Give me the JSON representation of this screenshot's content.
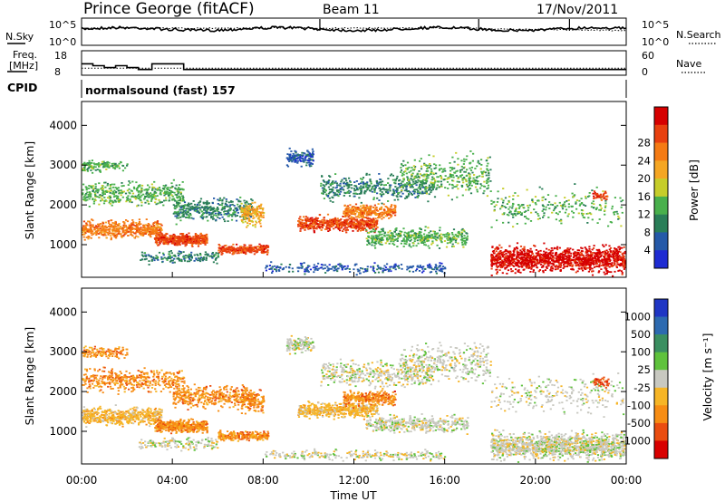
{
  "header": {
    "station": "Prince George (fitACF)",
    "beam": "Beam 11",
    "date": "17/Nov/2011"
  },
  "noise_panel": {
    "left_label": "N.Sky",
    "right_label": "N.Search",
    "left_ticks": [
      "10^5",
      "10^0"
    ],
    "right_ticks": [
      "10^5",
      "10^0"
    ]
  },
  "freq_panel": {
    "left_label_1": "Freq.",
    "left_label_2": "[MHz]",
    "right_label": "Nave",
    "left_ticks": [
      "18",
      "8"
    ],
    "right_ticks": [
      "60",
      "0"
    ],
    "freq_steps": [
      {
        "t": 0,
        "mhz": 14.0
      },
      {
        "t": 0.5,
        "mhz": 13.0
      },
      {
        "t": 1.0,
        "mhz": 12.0
      },
      {
        "t": 1.5,
        "mhz": 13.0
      },
      {
        "t": 2.0,
        "mhz": 12.0
      },
      {
        "t": 2.5,
        "mhz": 11.0
      },
      {
        "t": 3.1,
        "mhz": 14.0
      },
      {
        "t": 4.5,
        "mhz": 11.0
      },
      {
        "t": 24,
        "mhz": 11.0
      }
    ],
    "nave_level": 22
  },
  "cpid": {
    "label": "CPID",
    "text": "normalsound (fast) 157"
  },
  "chart_data": [
    {
      "type": "heatmap",
      "name": "power",
      "ylabel": "Slant Range [km]",
      "xlim": [
        0,
        24
      ],
      "ylim": [
        180,
        4600
      ],
      "yticks": [
        "1000",
        "2000",
        "3000",
        "4000"
      ],
      "colorbar": {
        "label": "Power [dB]",
        "ticks": [
          "4",
          "8",
          "12",
          "16",
          "20",
          "24",
          "28"
        ],
        "colors": [
          "#1e2bd2",
          "#2559a8",
          "#2a7e58",
          "#49b04c",
          "#c6cd2a",
          "#f5a623",
          "#f57b14",
          "#e8400f",
          "#d60000"
        ]
      }
    },
    {
      "type": "heatmap",
      "name": "velocity",
      "ylabel": "Slant Range [km]",
      "xlabel": "Time UT",
      "xlim": [
        0,
        24
      ],
      "ylim": [
        180,
        4600
      ],
      "yticks": [
        "1000",
        "2000",
        "3000",
        "4000"
      ],
      "xticks": [
        "00:00",
        "04:00",
        "08:00",
        "12:00",
        "16:00",
        "20:00",
        "00:00"
      ],
      "colorbar": {
        "label": "Velocity [m s⁻¹]",
        "ticks": [
          "1000",
          "500",
          "100",
          "25",
          "-25",
          "-100",
          "-500",
          "-1000"
        ],
        "colors": [
          "#1f36c4",
          "#2d6ab0",
          "#3b8f61",
          "#5fc23c",
          "#c8c8c0",
          "#f6b526",
          "#f78d14",
          "#ea4d10",
          "#d80000"
        ]
      }
    }
  ]
}
